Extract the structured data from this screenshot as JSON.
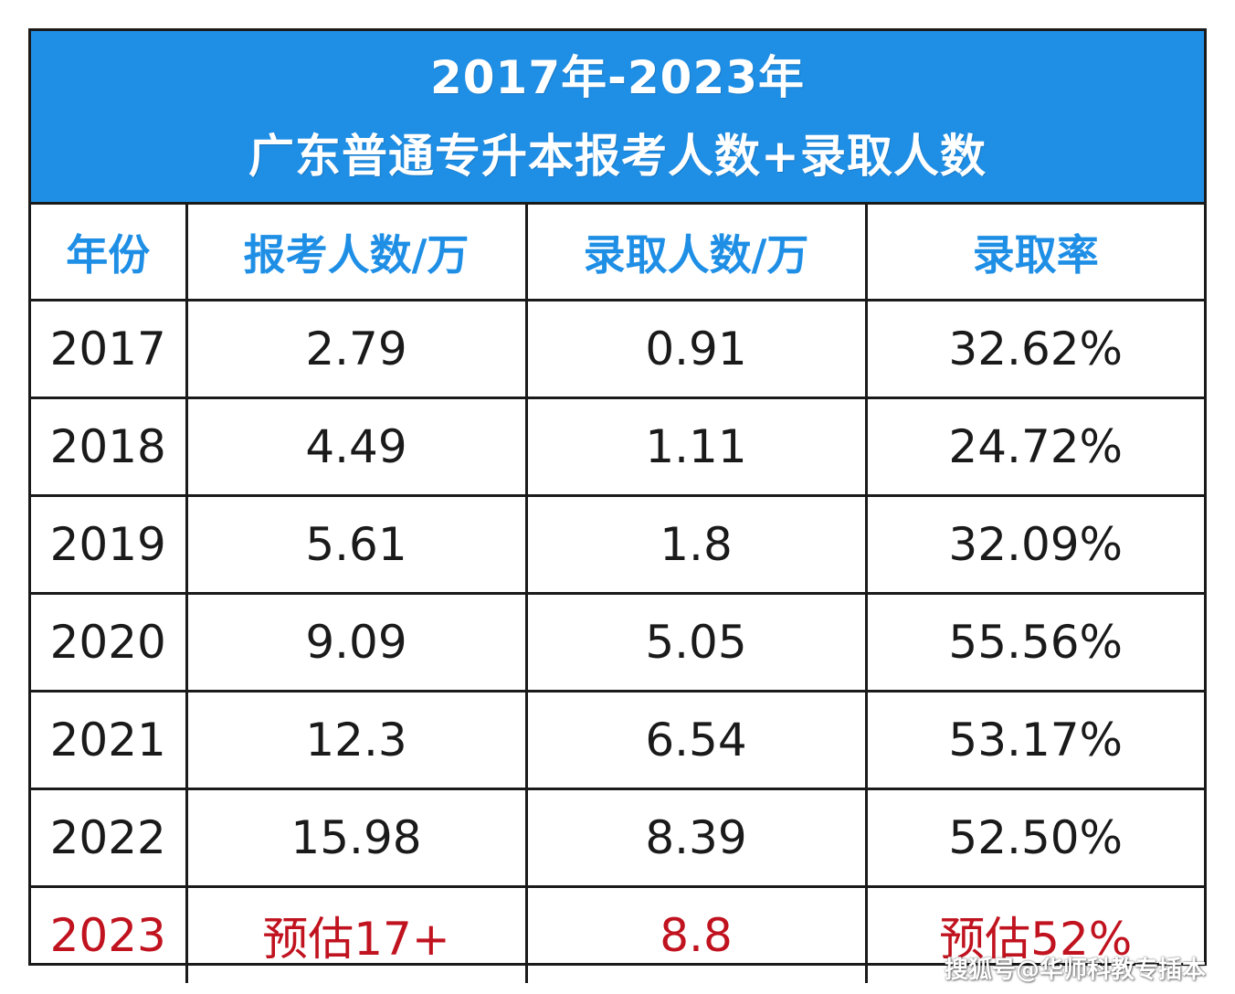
{
  "title": {
    "line1": "2017年-2023年",
    "line2": "广东普通专升本报考人数+录取人数"
  },
  "headers": [
    "年份",
    "报考人数/万",
    "录取人数/万",
    "录取率"
  ],
  "rows": [
    [
      "2017",
      "2.79",
      "0.91",
      "32.62%"
    ],
    [
      "2018",
      "4.49",
      "1.11",
      "24.72%"
    ],
    [
      "2019",
      "5.61",
      "1.8",
      "32.09%"
    ],
    [
      "2020",
      "9.09",
      "5.05",
      "55.56%"
    ],
    [
      "2021",
      "12.3",
      "6.54",
      "53.17%"
    ],
    [
      "2022",
      "15.98",
      "8.39",
      "52.50%"
    ],
    [
      "2023",
      "预估17+",
      "8.8",
      "预估52%"
    ]
  ],
  "watermark": "搜狐号@华师科教专插本",
  "colors": {
    "title_background": "#1f8fe6",
    "header_text": "#1f8fe6",
    "body_text": "#1a1a1a",
    "highlight_text": "#c0131f"
  }
}
